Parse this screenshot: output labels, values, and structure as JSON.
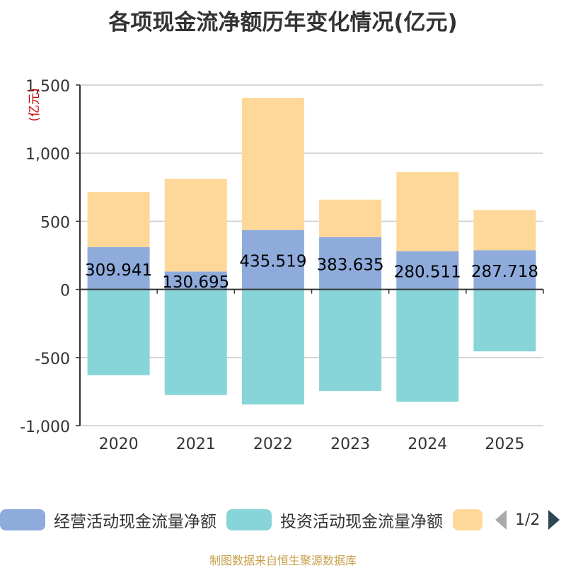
{
  "title": "各项现金流净额历年变化情况(亿元)",
  "source": "制图数据来自恒生聚源数据库",
  "pager": {
    "text": "1/2"
  },
  "chart_data": {
    "type": "bar",
    "stacked": true,
    "title": "各项现金流净额历年变化情况(亿元)",
    "ylabel": "(亿元)",
    "xlabel": "",
    "categories": [
      "2020",
      "2021",
      "2022",
      "2023",
      "2024",
      "2025"
    ],
    "ylim": [
      -1000,
      1500
    ],
    "yticks": [
      1500,
      1000,
      500,
      0,
      -500,
      -1000
    ],
    "ytick_labels": [
      "1,500",
      "1,000",
      "500",
      "0",
      "-500",
      "-1,000"
    ],
    "grid": true,
    "series": [
      {
        "name": "经营活动现金流量净额",
        "color": "#8eabdb",
        "values": [
          309.941,
          130.695,
          435.519,
          383.635,
          280.511,
          287.718
        ],
        "labels": [
          "309.941",
          "130.695",
          "435.519",
          "383.635",
          "280.511",
          "287.718"
        ]
      },
      {
        "name": "投资活动现金流量净额",
        "color": "#87d5d8",
        "values": [
          -630,
          -775,
          -845,
          -745,
          -825,
          -455
        ]
      },
      {
        "name": "",
        "color": "#fed899",
        "values": [
          405,
          680,
          970,
          275,
          580,
          295
        ]
      }
    ]
  }
}
